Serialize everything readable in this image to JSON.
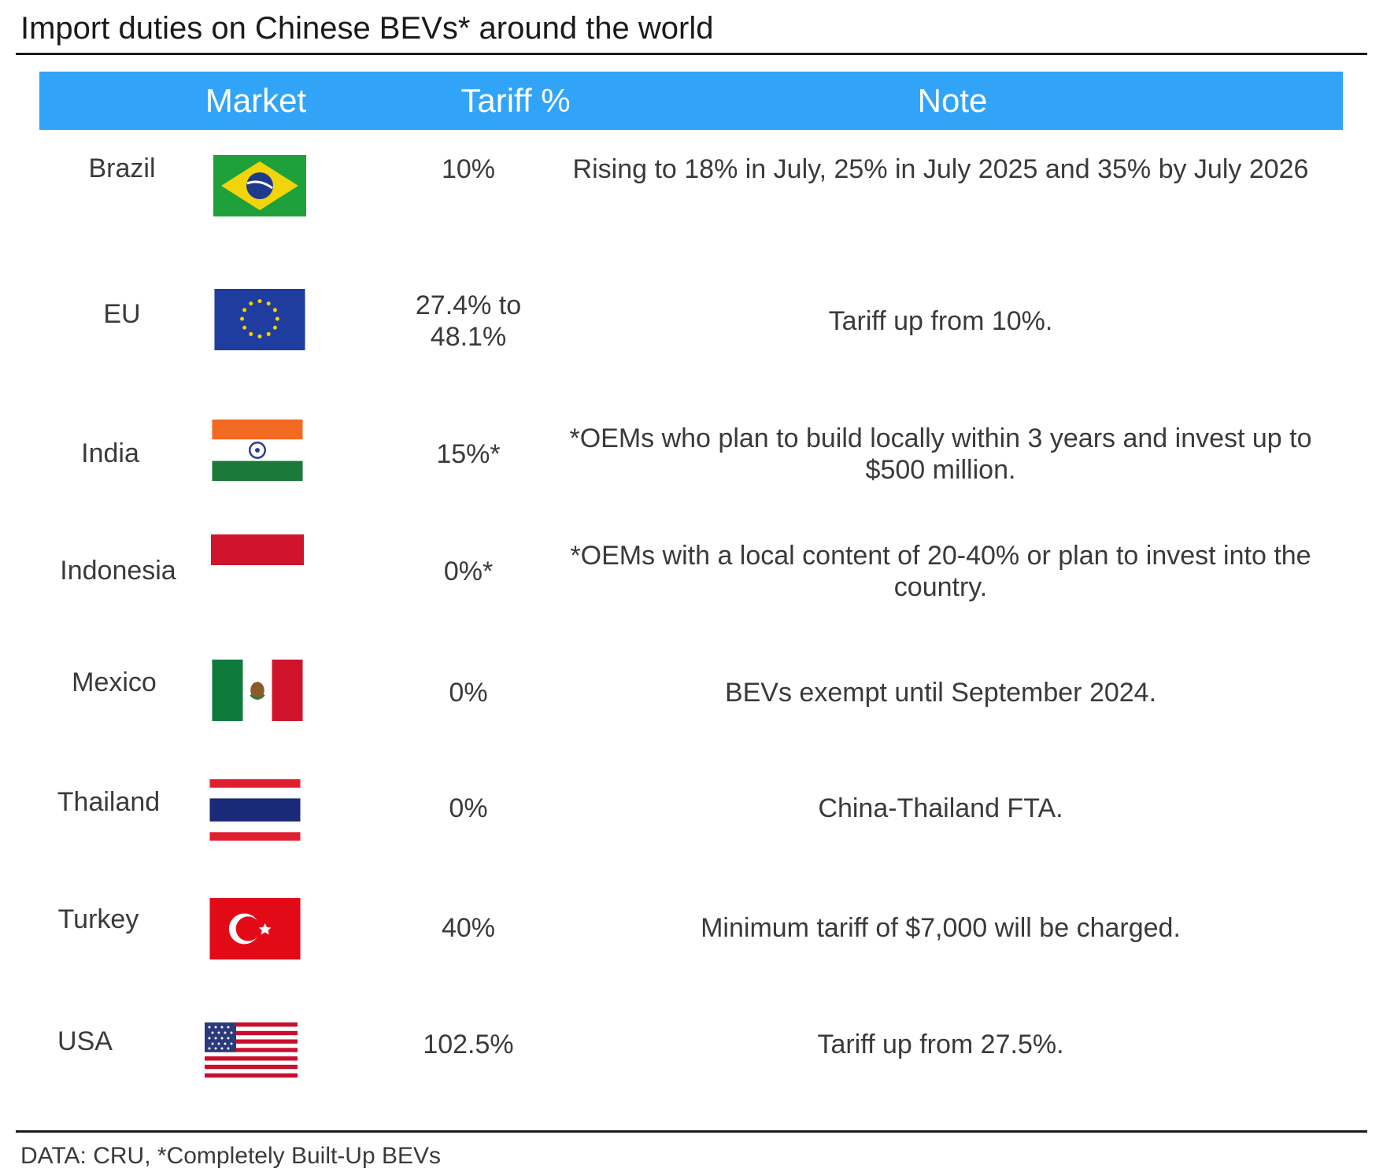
{
  "title": "Import duties on Chinese BEVs* around the world",
  "source": "DATA: CRU, *Completely Built-Up BEVs",
  "colors": {
    "header_bar": "#32a4f8",
    "header_text": "#ffffff",
    "rule": "#1a1a1a"
  },
  "chart_data": {
    "type": "table",
    "title": "Import duties on Chinese BEVs* around the world",
    "columns": [
      "Market",
      "Tariff %",
      "Note"
    ],
    "rows": [
      {
        "market": "Brazil",
        "flag_icon": "brazil-flag-icon",
        "tariff": "10%",
        "note": "Rising to 18% in July, 25% in July 2025 and 35% by July 2026"
      },
      {
        "market": "EU",
        "flag_icon": "eu-flag-icon",
        "tariff": "27.4% to 48.1%",
        "note": "Tariff up from 10%."
      },
      {
        "market": "India",
        "flag_icon": "india-flag-icon",
        "tariff": "15%*",
        "note": "*OEMs who plan to build locally within 3 years and invest up to $500 million."
      },
      {
        "market": "Indonesia",
        "flag_icon": "indonesia-flag-icon",
        "tariff": "0%*",
        "note": "*OEMs with a local content of 20-40% or plan to invest into the country."
      },
      {
        "market": "Mexico",
        "flag_icon": "mexico-flag-icon",
        "tariff": "0%",
        "note": "BEVs exempt until September 2024."
      },
      {
        "market": "Thailand",
        "flag_icon": "thailand-flag-icon",
        "tariff": "0%",
        "note": "China-Thailand FTA."
      },
      {
        "market": "Turkey",
        "flag_icon": "turkey-flag-icon",
        "tariff": "40%",
        "note": "Minimum tariff of $7,000 will be charged."
      },
      {
        "market": "USA",
        "flag_icon": "usa-flag-icon",
        "tariff": "102.5%",
        "note": "Tariff up from 27.5%."
      }
    ],
    "source": "DATA: CRU, *Completely Built-Up BEVs"
  }
}
